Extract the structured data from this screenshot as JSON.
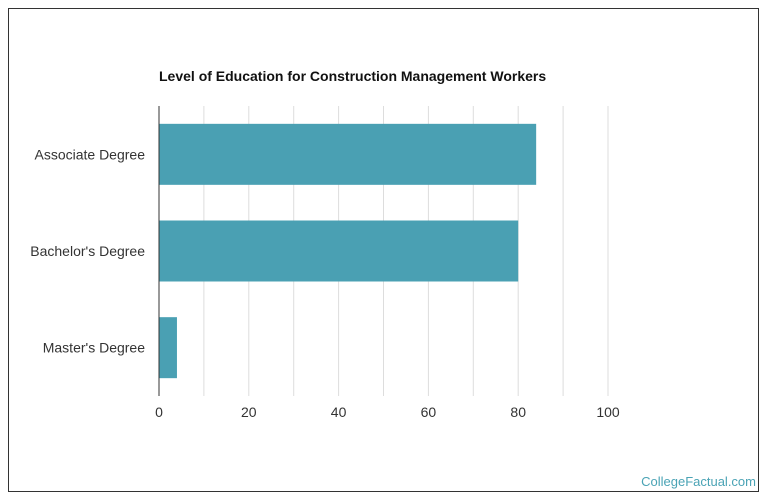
{
  "chart_data": {
    "type": "bar",
    "orientation": "horizontal",
    "title": "Level of Education for Construction Management Workers",
    "categories": [
      "Associate Degree",
      "Bachelor's Degree",
      "Master's Degree"
    ],
    "values": [
      84,
      80,
      4
    ],
    "xlabel": "",
    "ylabel": "",
    "xlim": [
      0,
      100
    ],
    "xticks": [
      0,
      20,
      40,
      60,
      80,
      100
    ],
    "grid": true,
    "bar_color": "#4aa0b3"
  },
  "credit": "CollegeFactual.com"
}
